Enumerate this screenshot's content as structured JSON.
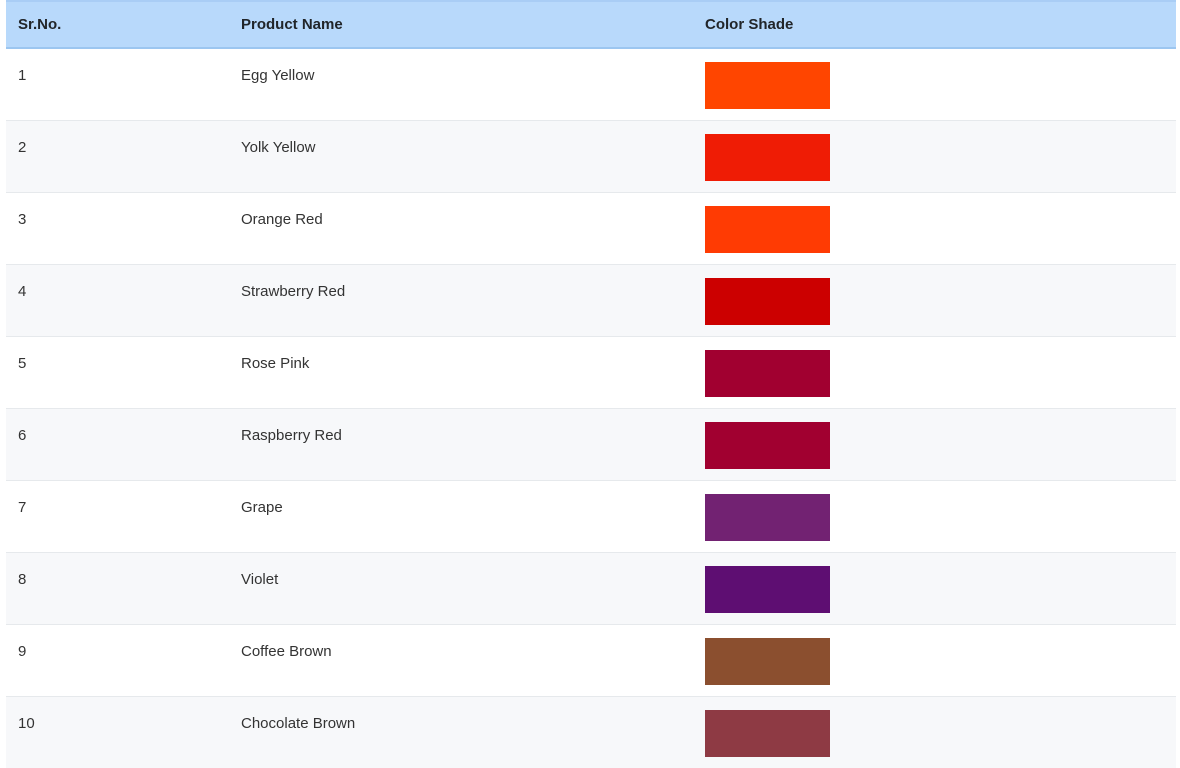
{
  "table": {
    "headers": {
      "srno": "Sr.No.",
      "product": "Product Name",
      "shade": "Color Shade"
    },
    "rows": [
      {
        "srno": "1",
        "product": "Egg Yellow",
        "color": "#ff4500"
      },
      {
        "srno": "2",
        "product": "Yolk Yellow",
        "color": "#ef1c05"
      },
      {
        "srno": "3",
        "product": "Orange Red",
        "color": "#ff3b03"
      },
      {
        "srno": "4",
        "product": "Strawberry Red",
        "color": "#cc0000"
      },
      {
        "srno": "5",
        "product": "Rose Pink",
        "color": "#a10030"
      },
      {
        "srno": "6",
        "product": "Raspberry Red",
        "color": "#a10030"
      },
      {
        "srno": "7",
        "product": "Grape",
        "color": "#722272"
      },
      {
        "srno": "8",
        "product": "Violet",
        "color": "#5e0e72"
      },
      {
        "srno": "9",
        "product": "Coffee Brown",
        "color": "#8b4f2f"
      },
      {
        "srno": "10",
        "product": "Chocolate Brown",
        "color": "#8e3a44"
      }
    ]
  }
}
